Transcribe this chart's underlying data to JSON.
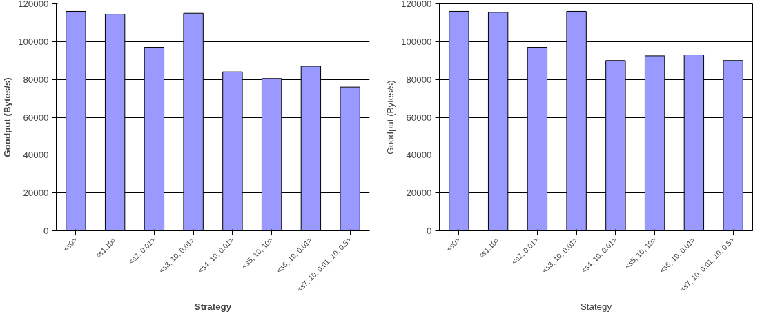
{
  "chart_data": [
    {
      "type": "bar",
      "xlabel": "Strategy",
      "ylabel": "Goodput (Bytes/s)",
      "categories": [
        "<s0>",
        "<s1,10>",
        "<s2, 0.01>",
        "<s3, 10, 0.01>",
        "<s4, 10, 0.01>",
        "<s5, 10, 10>",
        "<s6, 10, 0.01>",
        "<s7, 10, 0.01, 10, 0.5>"
      ],
      "values": [
        116000,
        114500,
        97000,
        115000,
        84000,
        80500,
        87000,
        76000
      ],
      "color": "#9999ff",
      "ylim": [
        0,
        120000
      ],
      "yticks": [
        0,
        20000,
        40000,
        60000,
        80000,
        100000,
        120000
      ],
      "grid": "y"
    },
    {
      "type": "bar",
      "xlabel": "Stategy",
      "ylabel": "Goodput (Bytes/s)",
      "categories": [
        "<s0>",
        "<s1,10>",
        "<s2, 0.01>",
        "<s3, 10, 0.01>",
        "<s4, 10, 0.01>",
        "<s5, 10, 10>",
        "<s6, 10, 0.01>",
        "<s7, 10, 0.01, 10, 0.5>"
      ],
      "values": [
        116000,
        115500,
        97000,
        116000,
        90000,
        92500,
        93000,
        90000
      ],
      "color": "#9999ff",
      "ylim": [
        0,
        120000
      ],
      "yticks": [
        0,
        20000,
        40000,
        60000,
        80000,
        100000,
        120000
      ],
      "grid": "y"
    }
  ]
}
